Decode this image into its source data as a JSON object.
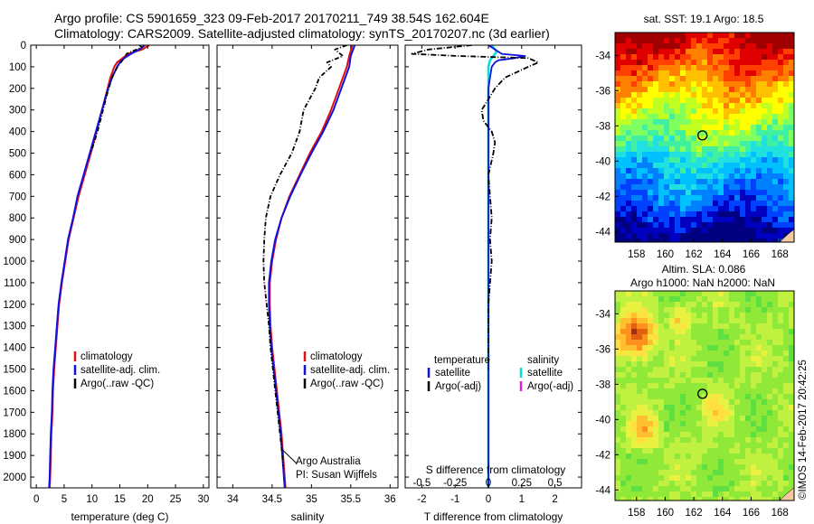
{
  "header": {
    "line1": "Argo profile: CS 5901659_323 09-Feb-2017 20170211_749 38.54S 162.604E",
    "line2": "Climatology: CARS2009. Satellite-adjusted climatology: synTS_20170207.nc (3d earlier)"
  },
  "colors": {
    "climatology": "#e01010",
    "satellite": "#1010e0",
    "argo": "#000000",
    "sat_salinity": "#00e0e0",
    "argo_adj_salinity": "#e020e0"
  },
  "chart_data": [
    {
      "type": "line",
      "name": "temperature-profile",
      "xlabel": "temperature (deg C)",
      "xlim": [
        -1,
        31
      ],
      "ylim": [
        2050,
        0
      ],
      "xticks": [
        "0",
        "5",
        "10",
        "15",
        "20",
        "25",
        "30"
      ],
      "yticks": [
        "0",
        "100",
        "200",
        "300",
        "400",
        "500",
        "600",
        "700",
        "800",
        "900",
        "1000",
        "1100",
        "1200",
        "1300",
        "1400",
        "1500",
        "1600",
        "1700",
        "1800",
        "1900",
        "2000"
      ],
      "legend": [
        "climatology",
        "satellite-adj. clim.",
        "Argo(..raw -QC)"
      ],
      "series": [
        {
          "name": "climatology",
          "depth": [
            0,
            20,
            40,
            60,
            80,
            100,
            150,
            200,
            300,
            400,
            500,
            600,
            700,
            800,
            900,
            1000,
            1100,
            1200,
            1300,
            1400,
            1500,
            1600,
            1700,
            1800,
            1900,
            2000,
            2050
          ],
          "values": [
            20.3,
            19.0,
            16.5,
            15.5,
            14.5,
            14.0,
            13.3,
            12.8,
            11.8,
            10.8,
            9.8,
            8.7,
            7.6,
            6.7,
            5.8,
            5.2,
            4.6,
            4.1,
            3.8,
            3.5,
            3.2,
            3.0,
            2.9,
            2.7,
            2.6,
            2.5,
            2.4
          ]
        },
        {
          "name": "satellite-adj. clim.",
          "depth": [
            0,
            20,
            40,
            60,
            80,
            100,
            150,
            200,
            300,
            400,
            500,
            600,
            700,
            800,
            900,
            1000,
            1100,
            1200,
            1300,
            1400,
            1500,
            1600,
            1700,
            1800,
            1900,
            2000,
            2050
          ],
          "values": [
            19.5,
            18.5,
            17.0,
            15.8,
            15.0,
            14.5,
            13.6,
            12.9,
            11.8,
            10.7,
            9.6,
            8.5,
            7.4,
            6.6,
            5.7,
            5.1,
            4.5,
            4.0,
            3.7,
            3.4,
            3.1,
            2.9,
            2.8,
            2.6,
            2.5,
            2.4,
            2.3
          ]
        },
        {
          "name": "Argo(..raw -QC)",
          "depth": [
            0,
            10,
            20,
            30,
            40,
            60,
            80,
            100,
            150,
            200,
            300,
            400,
            500
          ],
          "values": [
            18.5,
            19.0,
            18.0,
            17.0,
            16.2,
            15.8,
            15.2,
            14.6,
            13.6,
            13.0,
            12.0,
            11.0,
            9.8
          ]
        }
      ]
    },
    {
      "type": "line",
      "name": "salinity-profile",
      "xlabel": "salinity",
      "xlim": [
        33.8,
        36.1
      ],
      "ylim": [
        2050,
        0
      ],
      "xticks": [
        "34",
        "34.5",
        "35",
        "35.5",
        "36"
      ],
      "legend": [
        "climatology",
        "satellite-adj. clim.",
        "Argo(..raw -QC)"
      ],
      "annotation": [
        "Argo Australia",
        "PI: Susan Wijffels"
      ],
      "series": [
        {
          "name": "climatology",
          "depth": [
            0,
            50,
            100,
            200,
            300,
            400,
            500,
            600,
            700,
            800,
            900,
            1000,
            1100,
            1200,
            1300,
            1400,
            1500,
            1600,
            1700,
            1800,
            1900,
            2000,
            2050
          ],
          "values": [
            35.52,
            35.48,
            35.45,
            35.35,
            35.25,
            35.13,
            34.98,
            34.85,
            34.72,
            34.62,
            34.55,
            34.5,
            34.47,
            34.47,
            34.48,
            34.5,
            34.53,
            34.56,
            34.59,
            34.62,
            34.64,
            34.66,
            34.67
          ]
        },
        {
          "name": "satellite-adj. clim.",
          "depth": [
            0,
            50,
            100,
            200,
            300,
            400,
            500,
            600,
            700,
            800,
            900,
            1000,
            1100,
            1200,
            1300,
            1400,
            1500,
            1600,
            1700,
            1800,
            1900,
            2000,
            2050
          ],
          "values": [
            35.55,
            35.5,
            35.48,
            35.38,
            35.28,
            35.15,
            35.0,
            34.86,
            34.73,
            34.62,
            34.54,
            34.49,
            34.46,
            34.46,
            34.47,
            34.49,
            34.52,
            34.55,
            34.58,
            34.61,
            34.63,
            34.65,
            34.66
          ]
        },
        {
          "name": "Argo(..raw -QC)",
          "depth": [
            0,
            20,
            50,
            80,
            100,
            150,
            200,
            300,
            400,
            500,
            600,
            700,
            800,
            900,
            1000,
            1100,
            1200,
            1300,
            1400,
            1500,
            1600,
            1700,
            1800,
            1900,
            1950
          ],
          "values": [
            35.45,
            35.3,
            35.4,
            35.2,
            35.25,
            35.1,
            35.05,
            34.9,
            34.85,
            34.75,
            34.6,
            34.48,
            34.42,
            34.4,
            34.39,
            34.4,
            34.43,
            34.46,
            34.48,
            34.51,
            34.54,
            34.57,
            34.6,
            34.63,
            34.64
          ]
        }
      ]
    },
    {
      "type": "line",
      "name": "difference-profile",
      "xlabel": "T difference from climatology",
      "xlabel_top": "S difference from climatology",
      "xlim": [
        -2.5,
        2.8
      ],
      "ylim": [
        2050,
        0
      ],
      "xticks": [
        "-2",
        "-1",
        "0",
        "1",
        "2"
      ],
      "xticks_top": [
        "-0.5",
        "-0.25",
        "0",
        "0.25",
        "0.5"
      ],
      "legend_headers": [
        "temperature",
        "salinity"
      ],
      "legend": [
        "satellite",
        "Argo(-adj)",
        "satellite",
        "Argo(-adj)"
      ],
      "series": [
        {
          "name": "temperature satellite",
          "depth": [
            0,
            20,
            40,
            50,
            60,
            70,
            80,
            100,
            150,
            200,
            300,
            400,
            500,
            700,
            900,
            1100,
            1300,
            1500,
            1700,
            1900,
            2050
          ],
          "values": [
            0,
            0.2,
            0.4,
            1.1,
            0.8,
            0.3,
            0.2,
            0.1,
            0.05,
            0.0,
            0.0,
            0.0,
            0.0,
            0.0,
            0.0,
            0.0,
            0.0,
            0.0,
            0.0,
            0.0,
            0.0
          ]
        },
        {
          "name": "salinity satellite",
          "depth": [
            0,
            30,
            50,
            70,
            100,
            200,
            400,
            600,
            800,
            1000,
            1200,
            1400,
            1600,
            1800,
            2050
          ],
          "values": [
            0.1,
            0.25,
            0.15,
            0.05,
            0.0,
            0.0,
            0.0,
            0.0,
            0.0,
            0.0,
            0.0,
            0.0,
            0.0,
            0.0,
            0.0
          ]
        },
        {
          "name": "temperature Argo(-adj)",
          "depth": [
            0,
            20,
            40,
            50,
            60,
            80,
            100,
            150,
            200,
            250,
            300,
            350,
            400,
            450,
            500,
            600,
            700,
            800,
            900,
            1000,
            1100,
            1200,
            1300,
            1400,
            1500
          ],
          "values": [
            -0.5,
            -1.8,
            -2.3,
            -0.9,
            1.2,
            1.5,
            1.2,
            0.5,
            0.2,
            0.0,
            -0.2,
            -0.15,
            0.1,
            0.2,
            0.15,
            0.0,
            0.05,
            0.1,
            0.05,
            0.1,
            0.05,
            0.0,
            0.0,
            0.0,
            0.0
          ]
        }
      ]
    },
    {
      "type": "heatmap",
      "name": "sst-map",
      "title": "sat. SST: 19.1  Argo: 18.5",
      "xlim": [
        156.5,
        169
      ],
      "ylim": [
        -44.6,
        -32.7
      ],
      "xticks": [
        "158",
        "160",
        "162",
        "164",
        "166",
        "168"
      ],
      "yticks": [
        "-34",
        "-36",
        "-38",
        "-40",
        "-42",
        "-44"
      ],
      "marker": {
        "lon": 162.604,
        "lat": -38.54
      }
    },
    {
      "type": "heatmap",
      "name": "sla-map",
      "title": "Altim. SLA: 0.086",
      "subtitle": "Argo h1000: NaN h2000: NaN",
      "xlim": [
        156.5,
        169
      ],
      "ylim": [
        -44.6,
        -32.7
      ],
      "xticks": [
        "158",
        "160",
        "162",
        "164",
        "166",
        "168"
      ],
      "yticks": [
        "-34",
        "-36",
        "-38",
        "-40",
        "-42",
        "-44"
      ],
      "marker": {
        "lon": 162.604,
        "lat": -38.54
      }
    }
  ],
  "footer": {
    "credit": "©IMOS 14-Feb-2017 20:42:25"
  }
}
